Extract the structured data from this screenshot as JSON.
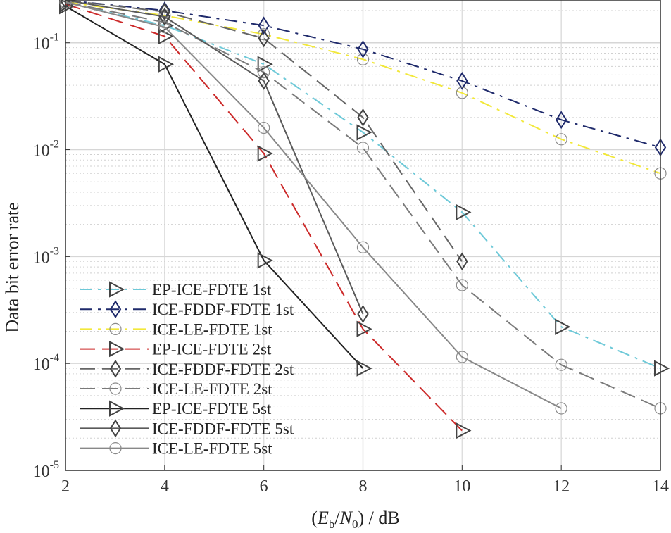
{
  "chart_data": {
    "type": "line",
    "title": "",
    "xlabel": "",
    "ylabel": "Data bit error rate",
    "xlabel_parts": {
      "open": "(",
      "e": "E",
      "e_sub": "b",
      "slash": "/",
      "n": "N",
      "n_sub": "0",
      "close": ")",
      "unit": " / dB"
    },
    "x_ticks": [
      "2",
      "4",
      "6",
      "8",
      "10",
      "12",
      "14"
    ],
    "y_ticks": [
      {
        "base": "10",
        "exp": "-1"
      },
      {
        "base": "10",
        "exp": "-2"
      },
      {
        "base": "10",
        "exp": "-3"
      },
      {
        "base": "10",
        "exp": "-4"
      },
      {
        "base": "10",
        "exp": "-5"
      }
    ],
    "xlim": [
      2,
      14
    ],
    "ylim_log10": [
      -5.0,
      -0.6
    ],
    "yscale": "log",
    "grid": true,
    "legend_position": "bottom-left",
    "series": [
      {
        "name": "EP-ICE-FDTE 1st",
        "color": "#6ec9d8",
        "dash": "dashdot",
        "marker": "triangle",
        "points": [
          [
            2,
            0.24
          ],
          [
            4,
            0.145
          ],
          [
            6,
            0.063
          ],
          [
            8,
            0.0145
          ],
          [
            10,
            0.0026
          ],
          [
            12,
            0.00022
          ],
          [
            14,
            9e-05
          ]
        ]
      },
      {
        "name": "ICE-FDDF-FDTE 1st",
        "color": "#1f2a6b",
        "dash": "dashdot",
        "marker": "diamond",
        "points": [
          [
            2,
            0.25
          ],
          [
            4,
            0.2
          ],
          [
            6,
            0.145
          ],
          [
            8,
            0.087
          ],
          [
            10,
            0.044
          ],
          [
            12,
            0.019
          ],
          [
            14,
            0.0105
          ]
        ]
      },
      {
        "name": "ICE-LE-FDTE 1st",
        "color": "#f2e83a",
        "dash": "dashdot",
        "marker": "circle",
        "points": [
          [
            2,
            0.24
          ],
          [
            4,
            0.18
          ],
          [
            6,
            0.12
          ],
          [
            8,
            0.07
          ],
          [
            10,
            0.034
          ],
          [
            12,
            0.0125
          ],
          [
            14,
            0.006
          ]
        ]
      },
      {
        "name": "EP-ICE-FDTE 2st",
        "color": "#cc2a2a",
        "dash": "dashed",
        "marker": "triangle",
        "points": [
          [
            2,
            0.23
          ],
          [
            4,
            0.115
          ],
          [
            6,
            0.0092
          ],
          [
            8,
            0.00021
          ],
          [
            10,
            2.35e-05
          ]
        ]
      },
      {
        "name": "ICE-FDDF-FDTE 2st",
        "color": "#666666",
        "dash": "dashed",
        "marker": "diamond",
        "points": [
          [
            2,
            0.25
          ],
          [
            4,
            0.195
          ],
          [
            6,
            0.11
          ],
          [
            8,
            0.02
          ],
          [
            10,
            0.0009
          ]
        ]
      },
      {
        "name": "ICE-LE-FDTE 2st",
        "color": "#7a7a7a",
        "dash": "dashed",
        "marker": "circle",
        "points": [
          [
            2,
            0.24
          ],
          [
            4,
            0.155
          ],
          [
            6,
            0.053
          ],
          [
            8,
            0.0104
          ],
          [
            10,
            0.00054
          ],
          [
            12,
            9.7e-05
          ],
          [
            14,
            3.8e-05
          ]
        ]
      },
      {
        "name": "EP-ICE-FDTE 5st",
        "color": "#222222",
        "dash": "solid",
        "marker": "triangle",
        "points": [
          [
            2,
            0.22
          ],
          [
            4,
            0.063
          ],
          [
            6,
            0.00092
          ],
          [
            8,
            9e-05
          ]
        ]
      },
      {
        "name": "ICE-FDDF-FDTE 5st",
        "color": "#5a5a5a",
        "dash": "solid",
        "marker": "diamond",
        "points": [
          [
            2,
            0.25
          ],
          [
            4,
            0.175
          ],
          [
            6,
            0.044
          ],
          [
            8,
            0.00029
          ]
        ]
      },
      {
        "name": "ICE-LE-FDTE 5st",
        "color": "#888888",
        "dash": "solid",
        "marker": "circle",
        "points": [
          [
            2,
            0.24
          ],
          [
            4,
            0.14
          ],
          [
            6,
            0.016
          ],
          [
            8,
            0.00122
          ],
          [
            10,
            0.000115
          ],
          [
            12,
            3.8e-05
          ]
        ]
      }
    ]
  }
}
